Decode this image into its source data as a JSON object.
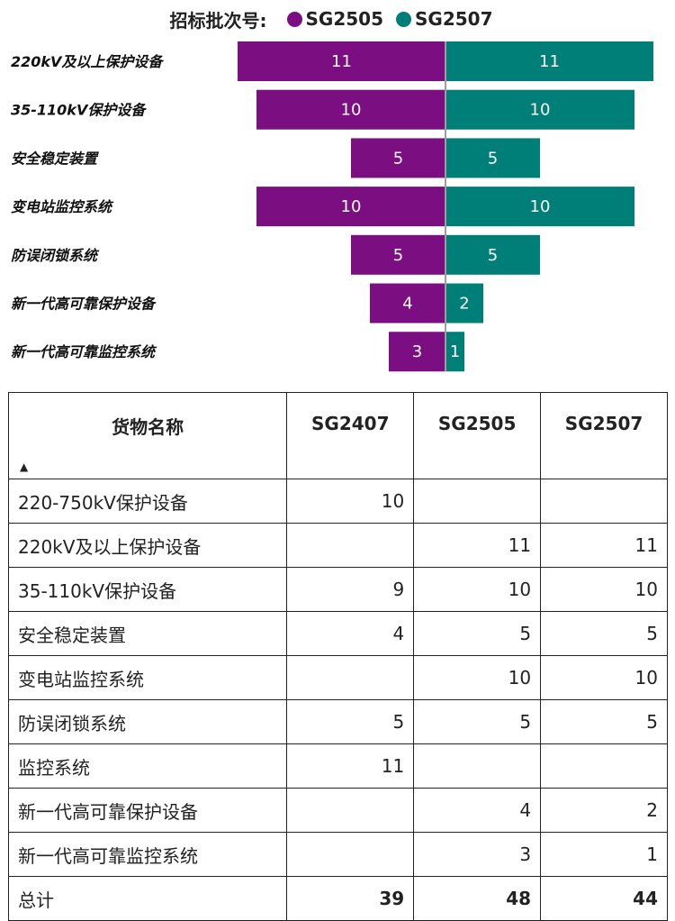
{
  "legend": {
    "title": "招标批次号:",
    "series": [
      {
        "name": "SG2505",
        "color": "#7b0f82"
      },
      {
        "name": "SG2507",
        "color": "#007f78"
      }
    ]
  },
  "chart_data": {
    "type": "bar",
    "orientation": "horizontal-diverging",
    "categories": [
      "220kV及以上保护设备",
      "35-110kV保护设备",
      "安全稳定装置",
      "变电站监控系统",
      "防误闭锁系统",
      "新一代高可靠保护设备",
      "新一代高可靠监控系统"
    ],
    "series": [
      {
        "name": "SG2505",
        "color": "#7b0f82",
        "values": [
          11,
          10,
          5,
          10,
          5,
          4,
          3
        ]
      },
      {
        "name": "SG2507",
        "color": "#007f78",
        "values": [
          11,
          10,
          5,
          10,
          5,
          2,
          1
        ]
      }
    ],
    "legend_position": "top-center"
  },
  "table": {
    "headers": [
      "货物名称",
      "SG2407",
      "SG2505",
      "SG2507"
    ],
    "sort_icon": "sort-ascending-icon",
    "rows": [
      {
        "name": "220-750kV保护设备",
        "v": [
          "10",
          "",
          ""
        ]
      },
      {
        "name": "220kV及以上保护设备",
        "v": [
          "",
          "11",
          "11"
        ]
      },
      {
        "name": "35-110kV保护设备",
        "v": [
          "9",
          "10",
          "10"
        ]
      },
      {
        "name": "安全稳定装置",
        "v": [
          "4",
          "5",
          "5"
        ]
      },
      {
        "name": "变电站监控系统",
        "v": [
          "",
          "10",
          "10"
        ]
      },
      {
        "name": "防误闭锁系统",
        "v": [
          "5",
          "5",
          "5"
        ]
      },
      {
        "name": "监控系统",
        "v": [
          "11",
          "",
          ""
        ]
      },
      {
        "name": "新一代高可靠保护设备",
        "v": [
          "",
          "4",
          "2"
        ]
      },
      {
        "name": "新一代高可靠监控系统",
        "v": [
          "",
          "3",
          "1"
        ]
      }
    ],
    "total": {
      "name": "总计",
      "v": [
        "39",
        "48",
        "44"
      ]
    }
  }
}
